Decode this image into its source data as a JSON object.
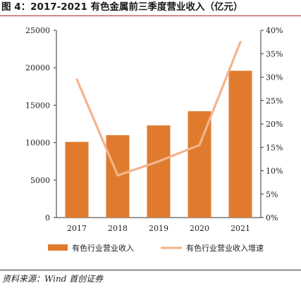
{
  "title": "图 4：2017-2021 有色金属前三季度营业收入（亿元）",
  "source": "资料来源：Wind  首创证券",
  "colors": {
    "bar": "#E07B2E",
    "line": "#F3B48C",
    "axis": "#333333",
    "title_rule": "#B22222"
  },
  "chart_data": {
    "type": "bar",
    "title": "图 4：2017-2021 有色金属前三季度营业收入（亿元）",
    "categories": [
      "2017",
      "2018",
      "2019",
      "2020",
      "2021"
    ],
    "series": [
      {
        "name": "有色行业营业收入",
        "type": "bar",
        "axis": "left",
        "values": [
          10100,
          11000,
          12300,
          14200,
          19600
        ]
      },
      {
        "name": "有色行业营业收入增速",
        "type": "line",
        "axis": "right",
        "values": [
          29.5,
          9.0,
          12.0,
          15.5,
          37.5
        ]
      }
    ],
    "y_left": {
      "ylim": [
        0,
        25000
      ],
      "ticks": [
        "0",
        "5000",
        "10000",
        "15000",
        "20000",
        "25000"
      ]
    },
    "y_right": {
      "ylim": [
        0,
        40
      ],
      "ticks": [
        "0%",
        "5%",
        "10%",
        "15%",
        "20%",
        "25%",
        "30%",
        "35%",
        "40%"
      ]
    },
    "grid": false,
    "legend": "bottom"
  }
}
